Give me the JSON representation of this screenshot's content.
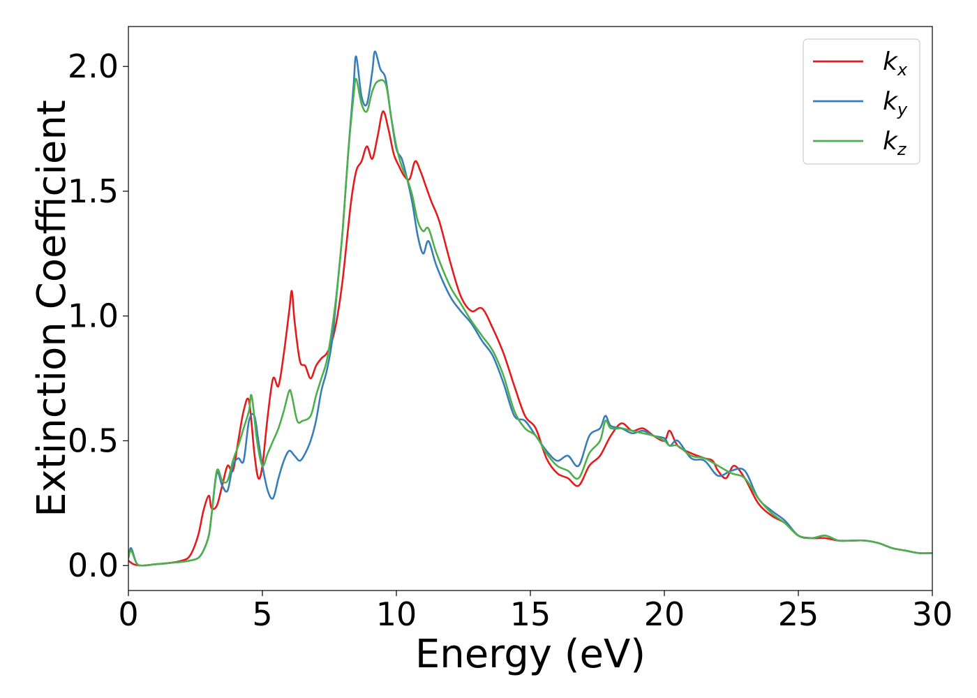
{
  "chart_data": {
    "type": "line",
    "title": "",
    "xlabel": "Energy (eV)",
    "ylabel": "Extinction Coefficient",
    "xlim": [
      0,
      30
    ],
    "ylim": [
      -0.1,
      2.16
    ],
    "xticks": [
      0,
      5,
      10,
      15,
      20,
      25,
      30
    ],
    "xtick_labels": [
      "0",
      "5",
      "10",
      "15",
      "20",
      "25",
      "30"
    ],
    "yticks": [
      0.0,
      0.5,
      1.0,
      1.5,
      2.0
    ],
    "ytick_labels": [
      "0.0",
      "0.5",
      "1.0",
      "1.5",
      "2.0"
    ],
    "grid": false,
    "legend_position": "top-right",
    "series": [
      {
        "name": "k_x",
        "label_base": "k",
        "label_sub": "x",
        "color": "#e41a1c",
        "x": [
          0,
          0.2,
          0.5,
          1,
          1.5,
          2,
          2.3,
          2.6,
          2.8,
          3.0,
          3.1,
          3.3,
          3.5,
          3.7,
          3.9,
          4.1,
          4.3,
          4.5,
          4.7,
          4.85,
          5.0,
          5.2,
          5.4,
          5.6,
          5.8,
          6.0,
          6.1,
          6.2,
          6.4,
          6.6,
          6.8,
          7.0,
          7.2,
          7.4,
          7.6,
          7.8,
          8.0,
          8.3,
          8.5,
          8.7,
          8.9,
          9.1,
          9.3,
          9.5,
          9.7,
          9.9,
          10.1,
          10.3,
          10.5,
          10.7,
          10.9,
          11.1,
          11.3,
          11.6,
          12.0,
          12.4,
          12.8,
          13.2,
          13.6,
          14.0,
          14.4,
          14.8,
          15.2,
          15.6,
          16.0,
          16.4,
          16.8,
          17.2,
          17.6,
          18.0,
          18.4,
          18.8,
          19.2,
          19.6,
          20.0,
          20.2,
          20.5,
          21.0,
          21.5,
          21.8,
          22.0,
          22.3,
          22.6,
          23.0,
          23.5,
          24.0,
          24.5,
          25.0,
          25.5,
          26.0,
          26.5,
          27.0,
          27.5,
          28.0,
          28.5,
          29.0,
          29.5,
          30.0
        ],
        "y": [
          0.02,
          0.005,
          0.0,
          0.005,
          0.01,
          0.02,
          0.04,
          0.12,
          0.22,
          0.28,
          0.23,
          0.24,
          0.32,
          0.4,
          0.38,
          0.5,
          0.62,
          0.66,
          0.45,
          0.35,
          0.4,
          0.6,
          0.75,
          0.72,
          0.85,
          1.02,
          1.1,
          0.98,
          0.82,
          0.8,
          0.75,
          0.8,
          0.83,
          0.85,
          0.9,
          1.0,
          1.15,
          1.45,
          1.58,
          1.62,
          1.68,
          1.63,
          1.72,
          1.82,
          1.75,
          1.65,
          1.6,
          1.56,
          1.55,
          1.62,
          1.58,
          1.52,
          1.46,
          1.38,
          1.22,
          1.08,
          1.02,
          1.03,
          0.95,
          0.85,
          0.72,
          0.6,
          0.55,
          0.43,
          0.37,
          0.35,
          0.32,
          0.4,
          0.44,
          0.52,
          0.57,
          0.54,
          0.55,
          0.52,
          0.5,
          0.54,
          0.48,
          0.45,
          0.43,
          0.42,
          0.38,
          0.35,
          0.4,
          0.35,
          0.25,
          0.2,
          0.17,
          0.12,
          0.11,
          0.11,
          0.1,
          0.1,
          0.1,
          0.09,
          0.07,
          0.06,
          0.05,
          0.05
        ]
      },
      {
        "name": "k_y",
        "label_base": "k",
        "label_sub": "y",
        "color": "#377eb8",
        "x": [
          0,
          0.1,
          0.3,
          0.5,
          1,
          1.5,
          2,
          2.3,
          2.6,
          2.8,
          3.0,
          3.1,
          3.3,
          3.5,
          3.7,
          3.9,
          4.1,
          4.3,
          4.5,
          4.7,
          4.85,
          5.0,
          5.2,
          5.4,
          5.6,
          5.8,
          6.0,
          6.2,
          6.4,
          6.6,
          6.8,
          7.0,
          7.2,
          7.4,
          7.6,
          7.8,
          8.0,
          8.2,
          8.4,
          8.5,
          8.7,
          8.9,
          9.1,
          9.2,
          9.4,
          9.6,
          9.8,
          10.0,
          10.2,
          10.4,
          10.6,
          10.8,
          11.0,
          11.2,
          11.5,
          12.0,
          12.4,
          12.8,
          13.2,
          13.6,
          14.0,
          14.4,
          14.8,
          15.2,
          15.6,
          16.0,
          16.4,
          16.8,
          17.2,
          17.6,
          17.8,
          18.0,
          18.4,
          18.8,
          19.2,
          19.6,
          20.0,
          20.2,
          20.5,
          21.0,
          21.5,
          22.0,
          22.5,
          23.0,
          23.5,
          24.0,
          24.5,
          25.0,
          25.5,
          26.0,
          26.5,
          27.0,
          27.5,
          28.0,
          28.5,
          29.0,
          29.5,
          30.0
        ],
        "y": [
          0.03,
          0.07,
          0.01,
          0.0,
          0.005,
          0.01,
          0.015,
          0.02,
          0.03,
          0.06,
          0.12,
          0.2,
          0.37,
          0.32,
          0.3,
          0.4,
          0.43,
          0.42,
          0.58,
          0.6,
          0.5,
          0.4,
          0.3,
          0.27,
          0.35,
          0.42,
          0.46,
          0.44,
          0.42,
          0.45,
          0.5,
          0.58,
          0.7,
          0.78,
          0.9,
          1.12,
          1.35,
          1.65,
          1.92,
          2.04,
          1.88,
          1.85,
          1.98,
          2.06,
          1.99,
          1.95,
          1.8,
          1.67,
          1.63,
          1.55,
          1.45,
          1.32,
          1.25,
          1.3,
          1.2,
          1.08,
          1.02,
          0.97,
          0.9,
          0.84,
          0.73,
          0.6,
          0.58,
          0.52,
          0.46,
          0.42,
          0.44,
          0.4,
          0.52,
          0.55,
          0.6,
          0.56,
          0.55,
          0.53,
          0.54,
          0.52,
          0.51,
          0.48,
          0.5,
          0.43,
          0.42,
          0.36,
          0.38,
          0.38,
          0.27,
          0.22,
          0.18,
          0.12,
          0.11,
          0.12,
          0.1,
          0.1,
          0.1,
          0.09,
          0.07,
          0.06,
          0.05,
          0.05
        ]
      },
      {
        "name": "k_z",
        "label_base": "k",
        "label_sub": "z",
        "color": "#4daf4a",
        "x": [
          0,
          0.1,
          0.3,
          0.5,
          1,
          1.5,
          2,
          2.3,
          2.6,
          2.8,
          3.0,
          3.1,
          3.3,
          3.5,
          3.7,
          3.9,
          4.1,
          4.3,
          4.5,
          4.6,
          4.8,
          5.0,
          5.2,
          5.4,
          5.6,
          5.8,
          6.0,
          6.1,
          6.3,
          6.5,
          6.8,
          7.0,
          7.2,
          7.4,
          7.6,
          7.8,
          8.0,
          8.2,
          8.4,
          8.5,
          8.7,
          8.9,
          9.1,
          9.3,
          9.6,
          9.8,
          10.0,
          10.2,
          10.4,
          10.6,
          10.8,
          11.0,
          11.2,
          11.5,
          12.0,
          12.4,
          12.8,
          13.2,
          13.6,
          14.0,
          14.4,
          14.8,
          15.2,
          15.6,
          16.0,
          16.4,
          16.8,
          17.2,
          17.6,
          17.8,
          18.0,
          18.4,
          18.8,
          19.2,
          19.6,
          20.0,
          20.2,
          20.5,
          21.0,
          21.5,
          22.0,
          22.5,
          23.0,
          23.5,
          24.0,
          24.5,
          25.0,
          25.5,
          26.0,
          26.5,
          27.0,
          27.5,
          28.0,
          28.5,
          29.0,
          29.5,
          30.0
        ],
        "y": [
          0.03,
          0.06,
          0.01,
          0.0,
          0.005,
          0.01,
          0.015,
          0.02,
          0.03,
          0.06,
          0.12,
          0.2,
          0.38,
          0.34,
          0.34,
          0.42,
          0.48,
          0.55,
          0.62,
          0.68,
          0.5,
          0.4,
          0.45,
          0.5,
          0.55,
          0.62,
          0.7,
          0.68,
          0.58,
          0.58,
          0.6,
          0.68,
          0.75,
          0.82,
          0.95,
          1.12,
          1.35,
          1.65,
          1.88,
          1.95,
          1.85,
          1.82,
          1.9,
          1.94,
          1.93,
          1.8,
          1.68,
          1.6,
          1.55,
          1.48,
          1.38,
          1.34,
          1.35,
          1.25,
          1.12,
          1.05,
          0.98,
          0.92,
          0.86,
          0.76,
          0.62,
          0.55,
          0.52,
          0.45,
          0.4,
          0.38,
          0.35,
          0.45,
          0.5,
          0.58,
          0.55,
          0.55,
          0.54,
          0.53,
          0.52,
          0.5,
          0.48,
          0.48,
          0.44,
          0.43,
          0.4,
          0.37,
          0.35,
          0.27,
          0.21,
          0.17,
          0.12,
          0.11,
          0.12,
          0.1,
          0.1,
          0.1,
          0.09,
          0.07,
          0.06,
          0.05,
          0.05
        ]
      }
    ]
  }
}
